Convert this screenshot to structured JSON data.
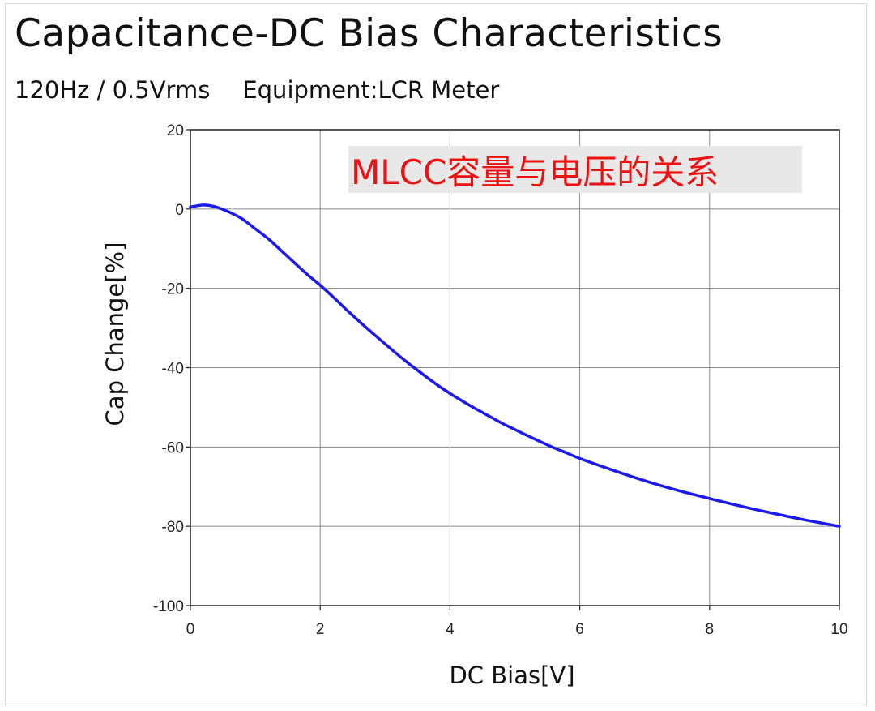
{
  "chart_data": {
    "type": "line",
    "title": "Capacitance-DC Bias Characteristics",
    "subtitle_conditions": "120Hz / 0.5Vrms",
    "subtitle_equipment": "Equipment:LCR Meter",
    "annotation": "MLCC容量与电压的关系",
    "xlabel": "DC Bias[V]",
    "ylabel": "Cap Change[%]",
    "xlim": [
      0,
      10
    ],
    "ylim": [
      -100,
      20
    ],
    "x_ticks": [
      0,
      2,
      4,
      6,
      8,
      10
    ],
    "y_ticks": [
      20,
      0,
      -20,
      -40,
      -60,
      -80,
      -100
    ],
    "grid": true,
    "series": [
      {
        "name": "Cap Change",
        "color": "#1a1aee",
        "x": [
          0,
          0.2,
          0.4,
          0.6,
          0.8,
          1.0,
          1.2,
          1.4,
          1.6,
          1.8,
          2.0,
          2.2,
          2.4,
          2.6,
          2.8,
          3.0,
          3.2,
          3.4,
          3.6,
          3.8,
          4.0,
          4.2,
          4.4,
          4.6,
          4.8,
          5.0,
          5.2,
          5.4,
          5.6,
          5.8,
          6.0,
          6.5,
          7.0,
          7.5,
          8.0,
          8.5,
          9.0,
          9.5,
          10.0
        ],
        "y": [
          0.5,
          1.0,
          0.5,
          -0.8,
          -2.5,
          -5.0,
          -7.5,
          -10.5,
          -13.5,
          -16.5,
          -19.2,
          -22.2,
          -25.3,
          -28.3,
          -31.2,
          -34.0,
          -36.8,
          -39.4,
          -41.9,
          -44.3,
          -46.5,
          -48.5,
          -50.4,
          -52.2,
          -54.0,
          -55.6,
          -57.2,
          -58.7,
          -60.2,
          -61.5,
          -62.9,
          -65.8,
          -68.5,
          -70.9,
          -73.0,
          -75.0,
          -76.8,
          -78.5,
          -80.0
        ]
      }
    ]
  }
}
